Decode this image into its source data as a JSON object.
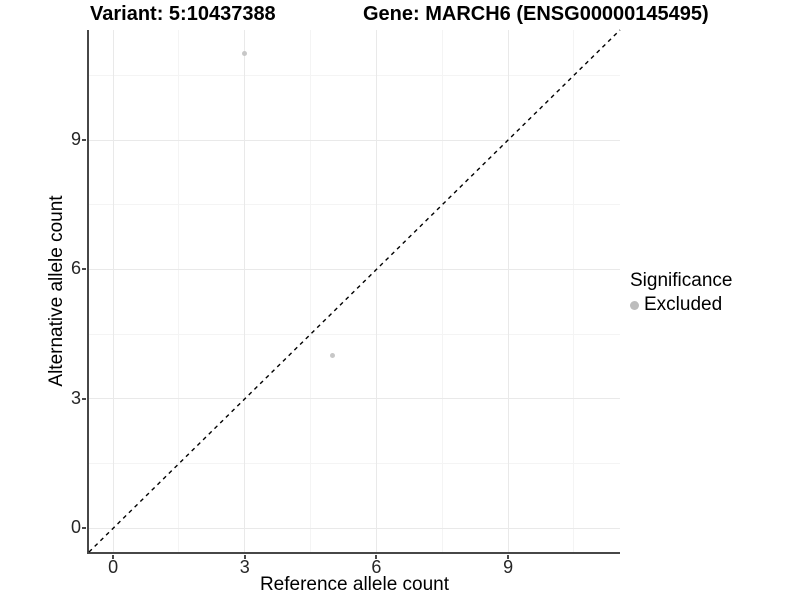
{
  "figure": {
    "background": "#ffffff"
  },
  "chart_data": {
    "type": "scatter",
    "titles": {
      "left": "Variant: 5:10437388",
      "right": "Gene: MARCH6 (ENSG00000145495)"
    },
    "xlabel": "Reference allele count",
    "ylabel": "Alternative allele count",
    "x_ticks": [
      0,
      3,
      6,
      9
    ],
    "y_ticks": [
      0,
      3,
      6,
      9
    ],
    "x_minor_ticks": [
      1.5,
      4.5,
      7.5,
      10.5
    ],
    "y_minor_ticks": [
      1.5,
      4.5,
      7.5,
      10.5
    ],
    "xlim": [
      -0.55,
      11.55
    ],
    "ylim": [
      -0.55,
      11.55
    ],
    "grid": "on",
    "points": [
      {
        "x": 3,
        "y": 11,
        "series": "Excluded"
      },
      {
        "x": 5,
        "y": 4,
        "series": "Excluded"
      }
    ],
    "abline": {
      "slope": 1,
      "intercept": 0,
      "linetype": "dashed",
      "color": "#000000"
    },
    "legend": {
      "position": "right",
      "title": "Significance",
      "items": [
        {
          "label": "Excluded",
          "color": "#bdbdbd"
        }
      ]
    },
    "colors": {
      "point": "#c7c7c7",
      "grid_major": "#e9e9e9",
      "grid_minor": "#f4f4f4",
      "axis_line": "#474747",
      "tick_text": "#262626"
    }
  }
}
